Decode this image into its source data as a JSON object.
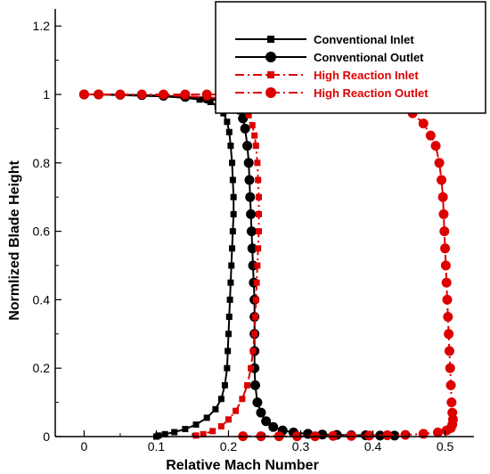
{
  "chart_data": {
    "type": "line",
    "xlabel": "Relative Mach Number",
    "ylabel": "Normlized Blade Height",
    "xlim": [
      -0.04,
      0.54
    ],
    "ylim": [
      0,
      1.25
    ],
    "x_ticks": [
      0,
      0.1,
      0.2,
      0.3,
      0.4,
      0.5
    ],
    "y_ticks": [
      0,
      0.2,
      0.4,
      0.6,
      0.8,
      1,
      1.2
    ],
    "x_tick_labels": [
      "0",
      "0.1",
      "0.2",
      "0.3",
      "0.4",
      "0.5"
    ],
    "y_tick_labels": [
      "0",
      "0.2",
      "0.4",
      "0.6",
      "0.8",
      "1",
      "1.2"
    ],
    "grid": false,
    "legend_position": "top-right",
    "series": [
      {
        "name": "Conventional Inlet",
        "color": "#000000",
        "line_style": "solid",
        "marker": "square",
        "points": [
          [
            0.0,
            1.0
          ],
          [
            0.02,
            1.0
          ],
          [
            0.05,
            0.998
          ],
          [
            0.08,
            0.996
          ],
          [
            0.11,
            0.994
          ],
          [
            0.14,
            0.99
          ],
          [
            0.16,
            0.985
          ],
          [
            0.175,
            0.978
          ],
          [
            0.185,
            0.965
          ],
          [
            0.193,
            0.945
          ],
          [
            0.198,
            0.92
          ],
          [
            0.201,
            0.89
          ],
          [
            0.203,
            0.85
          ],
          [
            0.205,
            0.8
          ],
          [
            0.206,
            0.75
          ],
          [
            0.207,
            0.7
          ],
          [
            0.207,
            0.65
          ],
          [
            0.206,
            0.6
          ],
          [
            0.205,
            0.55
          ],
          [
            0.204,
            0.5
          ],
          [
            0.203,
            0.45
          ],
          [
            0.202,
            0.4
          ],
          [
            0.201,
            0.35
          ],
          [
            0.2,
            0.3
          ],
          [
            0.199,
            0.25
          ],
          [
            0.198,
            0.2
          ],
          [
            0.195,
            0.15
          ],
          [
            0.19,
            0.11
          ],
          [
            0.182,
            0.08
          ],
          [
            0.17,
            0.055
          ],
          [
            0.155,
            0.035
          ],
          [
            0.14,
            0.022
          ],
          [
            0.125,
            0.013
          ],
          [
            0.112,
            0.007
          ],
          [
            0.103,
            0.003
          ],
          [
            0.1,
            0.0
          ]
        ]
      },
      {
        "name": "Conventional  Outlet",
        "color": "#000000",
        "line_style": "solid",
        "marker": "circle",
        "points": [
          [
            0.0,
            1.0
          ],
          [
            0.02,
            1.0
          ],
          [
            0.05,
            0.999
          ],
          [
            0.08,
            0.998
          ],
          [
            0.11,
            0.996
          ],
          [
            0.14,
            0.993
          ],
          [
            0.17,
            0.988
          ],
          [
            0.19,
            0.982
          ],
          [
            0.205,
            0.972
          ],
          [
            0.215,
            0.955
          ],
          [
            0.22,
            0.93
          ],
          [
            0.223,
            0.9
          ],
          [
            0.226,
            0.85
          ],
          [
            0.228,
            0.8
          ],
          [
            0.229,
            0.75
          ],
          [
            0.23,
            0.7
          ],
          [
            0.231,
            0.65
          ],
          [
            0.232,
            0.6
          ],
          [
            0.233,
            0.55
          ],
          [
            0.234,
            0.5
          ],
          [
            0.235,
            0.45
          ],
          [
            0.236,
            0.4
          ],
          [
            0.236,
            0.35
          ],
          [
            0.236,
            0.3
          ],
          [
            0.236,
            0.25
          ],
          [
            0.236,
            0.2
          ],
          [
            0.237,
            0.15
          ],
          [
            0.24,
            0.1
          ],
          [
            0.245,
            0.07
          ],
          [
            0.252,
            0.045
          ],
          [
            0.262,
            0.028
          ],
          [
            0.275,
            0.018
          ],
          [
            0.29,
            0.012
          ],
          [
            0.31,
            0.008
          ],
          [
            0.33,
            0.006
          ],
          [
            0.35,
            0.005
          ],
          [
            0.37,
            0.004
          ],
          [
            0.39,
            0.004
          ],
          [
            0.41,
            0.003
          ],
          [
            0.43,
            0.003
          ]
        ]
      },
      {
        "name": "High Reaction Inlet",
        "color": "#dd0000",
        "line_style": "dashdot",
        "marker": "square",
        "points": [
          [
            0.0,
            1.0
          ],
          [
            0.02,
            1.0
          ],
          [
            0.05,
            0.999
          ],
          [
            0.08,
            0.998
          ],
          [
            0.11,
            0.997
          ],
          [
            0.14,
            0.995
          ],
          [
            0.17,
            0.992
          ],
          [
            0.19,
            0.988
          ],
          [
            0.205,
            0.982
          ],
          [
            0.215,
            0.972
          ],
          [
            0.222,
            0.958
          ],
          [
            0.228,
            0.94
          ],
          [
            0.233,
            0.91
          ],
          [
            0.236,
            0.88
          ],
          [
            0.238,
            0.85
          ],
          [
            0.24,
            0.8
          ],
          [
            0.241,
            0.75
          ],
          [
            0.242,
            0.7
          ],
          [
            0.242,
            0.65
          ],
          [
            0.242,
            0.6
          ],
          [
            0.241,
            0.55
          ],
          [
            0.24,
            0.5
          ],
          [
            0.239,
            0.45
          ],
          [
            0.238,
            0.4
          ],
          [
            0.237,
            0.35
          ],
          [
            0.236,
            0.3
          ],
          [
            0.234,
            0.25
          ],
          [
            0.231,
            0.2
          ],
          [
            0.226,
            0.15
          ],
          [
            0.219,
            0.11
          ],
          [
            0.21,
            0.075
          ],
          [
            0.2,
            0.05
          ],
          [
            0.19,
            0.03
          ],
          [
            0.178,
            0.016
          ],
          [
            0.165,
            0.007
          ],
          [
            0.155,
            0.003
          ]
        ]
      },
      {
        "name": "High Reaction Outlet",
        "color": "#dd0000",
        "line_style": "dashdot",
        "marker": "circle",
        "points": [
          [
            0.0,
            1.0
          ],
          [
            0.02,
            1.0
          ],
          [
            0.05,
            1.0
          ],
          [
            0.08,
            1.0
          ],
          [
            0.11,
            1.0
          ],
          [
            0.14,
            1.0
          ],
          [
            0.17,
            1.0
          ],
          [
            0.2,
            1.0
          ],
          [
            0.23,
            0.999
          ],
          [
            0.26,
            0.998
          ],
          [
            0.29,
            0.997
          ],
          [
            0.32,
            0.995
          ],
          [
            0.35,
            0.992
          ],
          [
            0.38,
            0.988
          ],
          [
            0.41,
            0.98
          ],
          [
            0.435,
            0.965
          ],
          [
            0.455,
            0.945
          ],
          [
            0.47,
            0.915
          ],
          [
            0.48,
            0.88
          ],
          [
            0.487,
            0.85
          ],
          [
            0.492,
            0.8
          ],
          [
            0.495,
            0.75
          ],
          [
            0.497,
            0.7
          ],
          [
            0.498,
            0.65
          ],
          [
            0.499,
            0.6
          ],
          [
            0.5,
            0.55
          ],
          [
            0.501,
            0.5
          ],
          [
            0.502,
            0.45
          ],
          [
            0.503,
            0.4
          ],
          [
            0.504,
            0.35
          ],
          [
            0.505,
            0.3
          ],
          [
            0.506,
            0.25
          ],
          [
            0.507,
            0.2
          ],
          [
            0.508,
            0.15
          ],
          [
            0.509,
            0.1
          ],
          [
            0.51,
            0.07
          ],
          [
            0.511,
            0.05
          ],
          [
            0.51,
            0.035
          ],
          [
            0.508,
            0.025
          ],
          [
            0.502,
            0.018
          ],
          [
            0.49,
            0.012
          ],
          [
            0.47,
            0.008
          ],
          [
            0.445,
            0.005
          ],
          [
            0.42,
            0.004
          ],
          [
            0.395,
            0.003
          ],
          [
            0.37,
            0.002
          ],
          [
            0.345,
            0.002
          ],
          [
            0.32,
            0.001
          ],
          [
            0.295,
            0.001
          ],
          [
            0.27,
            0.001
          ],
          [
            0.245,
            0.001
          ],
          [
            0.22,
            0.001
          ]
        ]
      }
    ]
  }
}
